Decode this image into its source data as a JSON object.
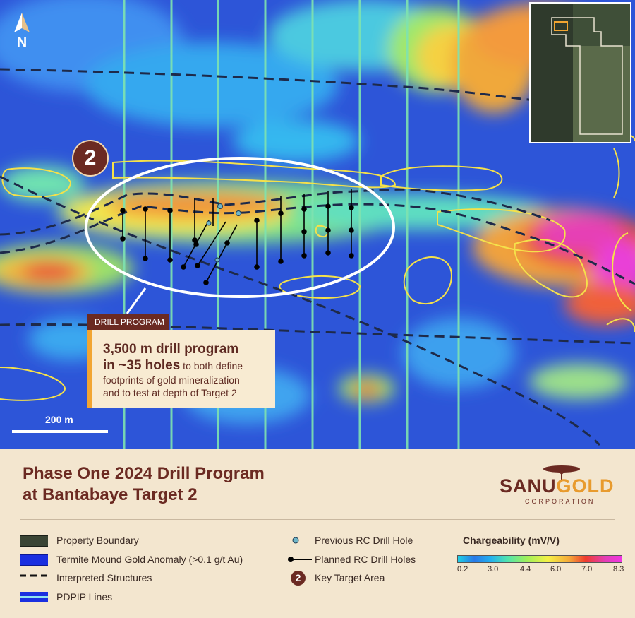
{
  "map": {
    "north_label": "N",
    "scale_label": "200 m",
    "target_label": "2",
    "callout": {
      "tag": "DRILL PROGRAM",
      "bold_line1": "3,500 m drill program",
      "bold_line2": "in ~35 holes",
      "text_part": " to both define",
      "line3": "footprints of gold mineralization",
      "line4": "and to test at depth of Target 2"
    }
  },
  "title": {
    "line1": "Phase One 2024 Drill Program",
    "line2": "at Bantabaye Target 2"
  },
  "logo": {
    "part1": "SANU",
    "part2": "GOLD",
    "sub": "CORPORATION"
  },
  "legend": {
    "property_boundary": "Property Boundary",
    "termite_mound": "Termite Mound Gold Anomaly (>0.1 g/t Au)",
    "interpreted_structures": "Interpreted Structures",
    "pdpip_lines": "PDPIP Lines",
    "previous_rc": "Previous RC Drill Hole",
    "planned_rc": "Planned RC Drill Holes",
    "key_target": "Key Target Area",
    "key_target_badge": "2"
  },
  "colorbar": {
    "title": "Chargeability (mV/V)",
    "ticks": [
      "0.2",
      "3.0",
      "4.4",
      "6.0",
      "7.0",
      "8.3"
    ]
  },
  "colors": {
    "title_brown": "#6b2a22",
    "accent_gold": "#f2a531",
    "pdpip_line": "#4fe3b0",
    "anomaly_outline": "#f5e14a"
  }
}
